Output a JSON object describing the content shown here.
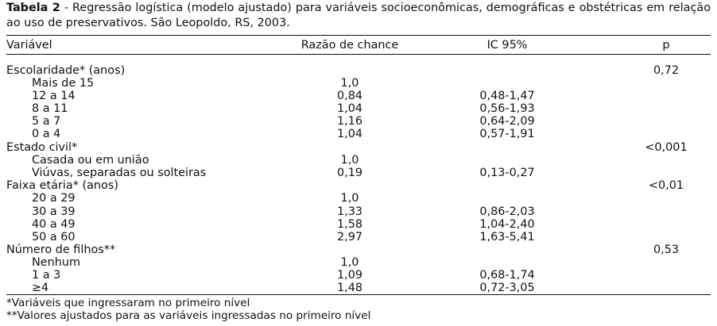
{
  "caption": {
    "label": "Tabela 2",
    "text": " - Regressão logística (modelo ajustado) para variáveis socioeconômicas, demográficas e obstétricas em relação ao uso de preservativos. São Leopoldo, RS, 2003."
  },
  "headers": {
    "variable": "Variável",
    "odds_ratio": "Razão de chance",
    "ci": "IC 95%",
    "p": "p"
  },
  "rows": [
    {
      "variable": "Escolaridade* (anos)",
      "or": "",
      "ci": "",
      "p": "0,72"
    },
    {
      "variable": "Mais de 15",
      "or": "1,0",
      "ci": "",
      "p": ""
    },
    {
      "variable": "12 a 14",
      "or": "0,84",
      "ci": "0,48-1,47",
      "p": ""
    },
    {
      "variable": "8 a 11",
      "or": "1,04",
      "ci": "0,56-1,93",
      "p": ""
    },
    {
      "variable": "5 a 7",
      "or": "1,16",
      "ci": "0,64-2,09",
      "p": ""
    },
    {
      "variable": "0 a 4",
      "or": "1,04",
      "ci": "0,57-1,91",
      "p": ""
    },
    {
      "variable": "Estado civil*",
      "or": "",
      "ci": "",
      "p": "<0,001"
    },
    {
      "variable": "Casada ou em união",
      "or": "1,0",
      "ci": "",
      "p": ""
    },
    {
      "variable": "Viúvas, separadas ou solteiras",
      "or": "0,19",
      "ci": "0,13-0,27",
      "p": ""
    },
    {
      "variable": "Faixa etária* (anos)",
      "or": "",
      "ci": "",
      "p": "<0,01"
    },
    {
      "variable": "20 a 29",
      "or": "1,0",
      "ci": "",
      "p": ""
    },
    {
      "variable": "30 a 39",
      "or": "1,33",
      "ci": "0,86-2,03",
      "p": ""
    },
    {
      "variable": "40 a 49",
      "or": "1,58",
      "ci": "1,04-2,40",
      "p": ""
    },
    {
      "variable": "50 a 60",
      "or": "2,97",
      "ci": "1,63-5,41",
      "p": ""
    },
    {
      "variable": "Número de filhos**",
      "or": "",
      "ci": "",
      "p": "0,53"
    },
    {
      "variable": "Nenhum",
      "or": "1,0",
      "ci": "",
      "p": ""
    },
    {
      "variable": "1 a 3",
      "or": "1,09",
      "ci": "0,68-1,74",
      "p": ""
    },
    {
      "variable": "≥4",
      "or": "1,48",
      "ci": "0,72-3,05",
      "p": ""
    }
  ],
  "footnotes": [
    "*Variáveis que ingressaram no primeiro nível",
    "**Valores ajustados para as variáveis ingressadas no primeiro nível"
  ]
}
